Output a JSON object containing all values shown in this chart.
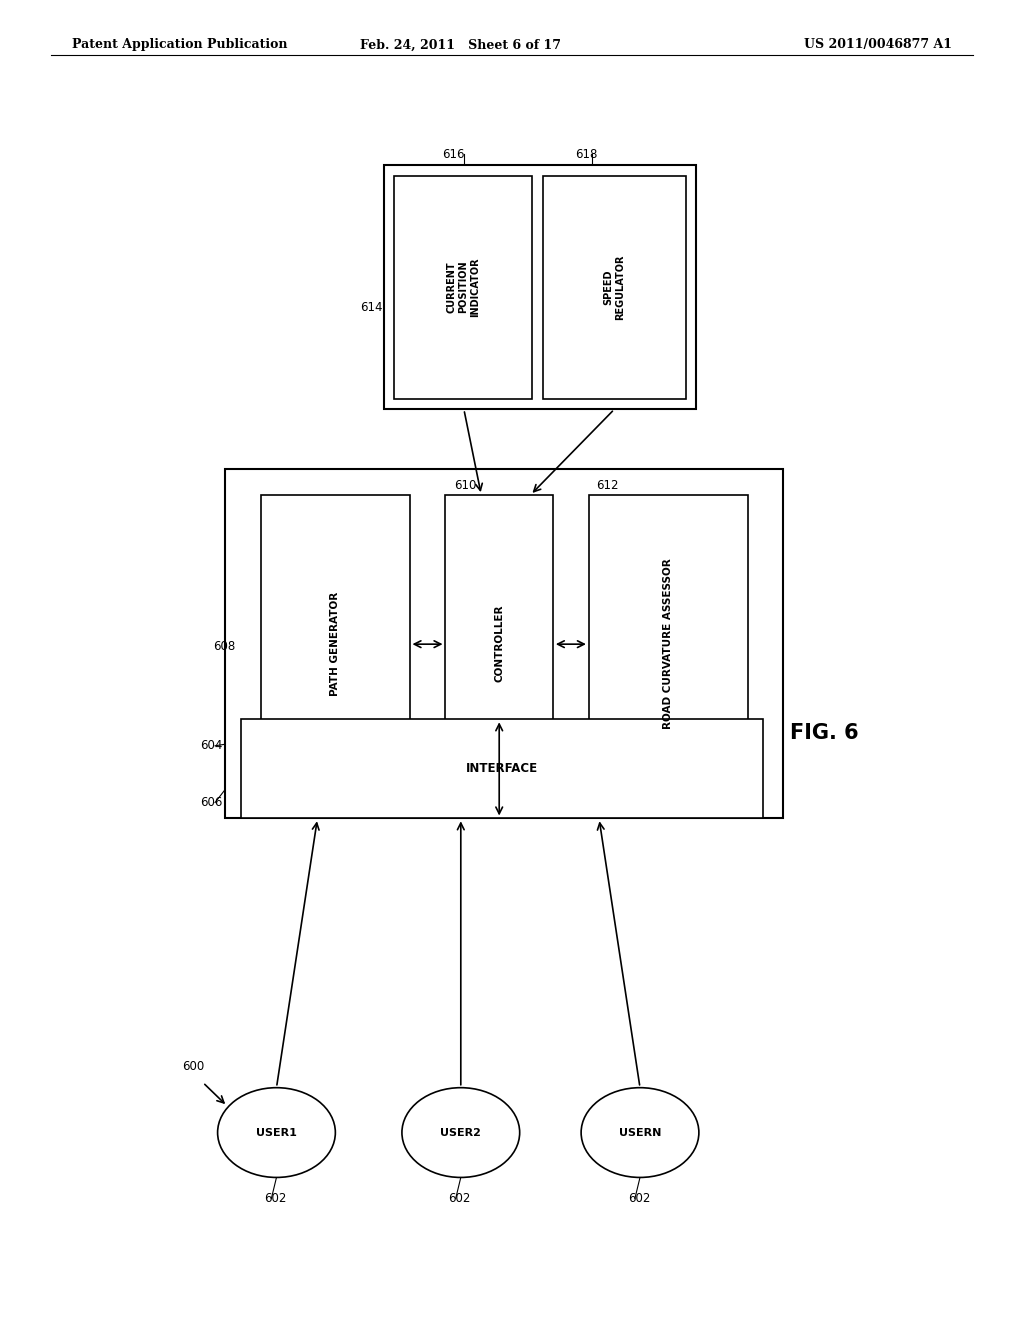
{
  "bg_color": "#ffffff",
  "header_left": "Patent Application Publication",
  "header_mid": "Feb. 24, 2011   Sheet 6 of 17",
  "header_right": "US 2011/0046877 A1",
  "fig_label": "FIG. 6"
}
